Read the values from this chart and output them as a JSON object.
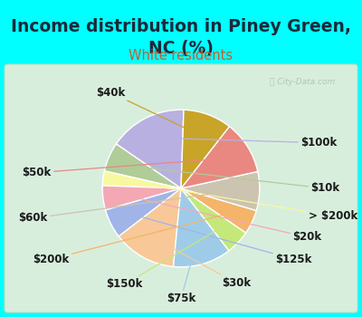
{
  "title": "Income distribution in Piney Green,\nNC (%)",
  "subtitle": "White residents",
  "bg_color": "#00ffff",
  "chart_bg": "#d8eedd",
  "labels": [
    "$100k",
    "$10k",
    "> $200k",
    "$20k",
    "$125k",
    "$30k",
    "$75k",
    "$150k",
    "$200k",
    "$60k",
    "$50k",
    "$40k"
  ],
  "values": [
    16,
    6,
    3,
    5,
    6,
    13,
    12,
    5,
    5,
    8,
    11,
    10
  ],
  "colors": [
    "#b8b0e0",
    "#b0cc98",
    "#f8f8a0",
    "#f4a8b4",
    "#a0b4e8",
    "#f8c898",
    "#9ecce8",
    "#c4e87a",
    "#f4b46a",
    "#ccc4b0",
    "#e88880",
    "#c8a428"
  ],
  "startangle": 88,
  "title_fontsize": 13.5,
  "subtitle_fontsize": 10.5,
  "label_fontsize": 8.5,
  "watermark": "City-Data.com",
  "title_color": "#1a2a3a",
  "subtitle_color": "#c06030"
}
